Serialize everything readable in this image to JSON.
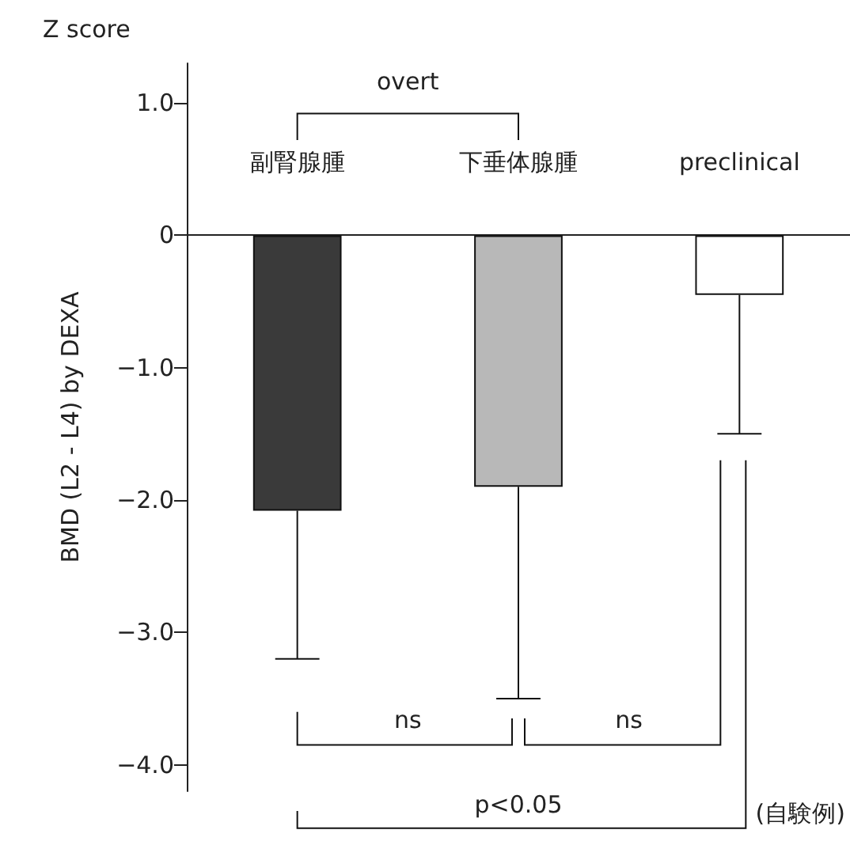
{
  "chart_data": {
    "type": "bar",
    "title": "Z score",
    "ylabel": "BMD (L2 - L4) by DEXA",
    "categories": [
      "副腎腺腫",
      "下垂体腺腫",
      "preclinical"
    ],
    "values": [
      -2.08,
      -1.9,
      -0.45
    ],
    "colors": [
      "#3a3a3a",
      "#b8b8b8",
      "#ffffff"
    ],
    "errors": [
      [
        -3.2,
        -2.08
      ],
      [
        -3.5,
        -1.9
      ],
      [
        -1.5,
        -0.45
      ]
    ],
    "ylim": [
      -4.2,
      1.3
    ],
    "yticks": [
      {
        "value": 1,
        "label": "1.0"
      },
      0,
      {
        "value": -1,
        "label": "−1.0"
      },
      {
        "value": -2,
        "label": "−2.0"
      },
      {
        "value": -3,
        "label": "−3.0"
      },
      {
        "value": -4,
        "label": "−4.0"
      }
    ],
    "annotations": [
      "overt",
      "ns",
      "ns",
      "p<0.05",
      "(自験例)"
    ],
    "grid": false
  }
}
